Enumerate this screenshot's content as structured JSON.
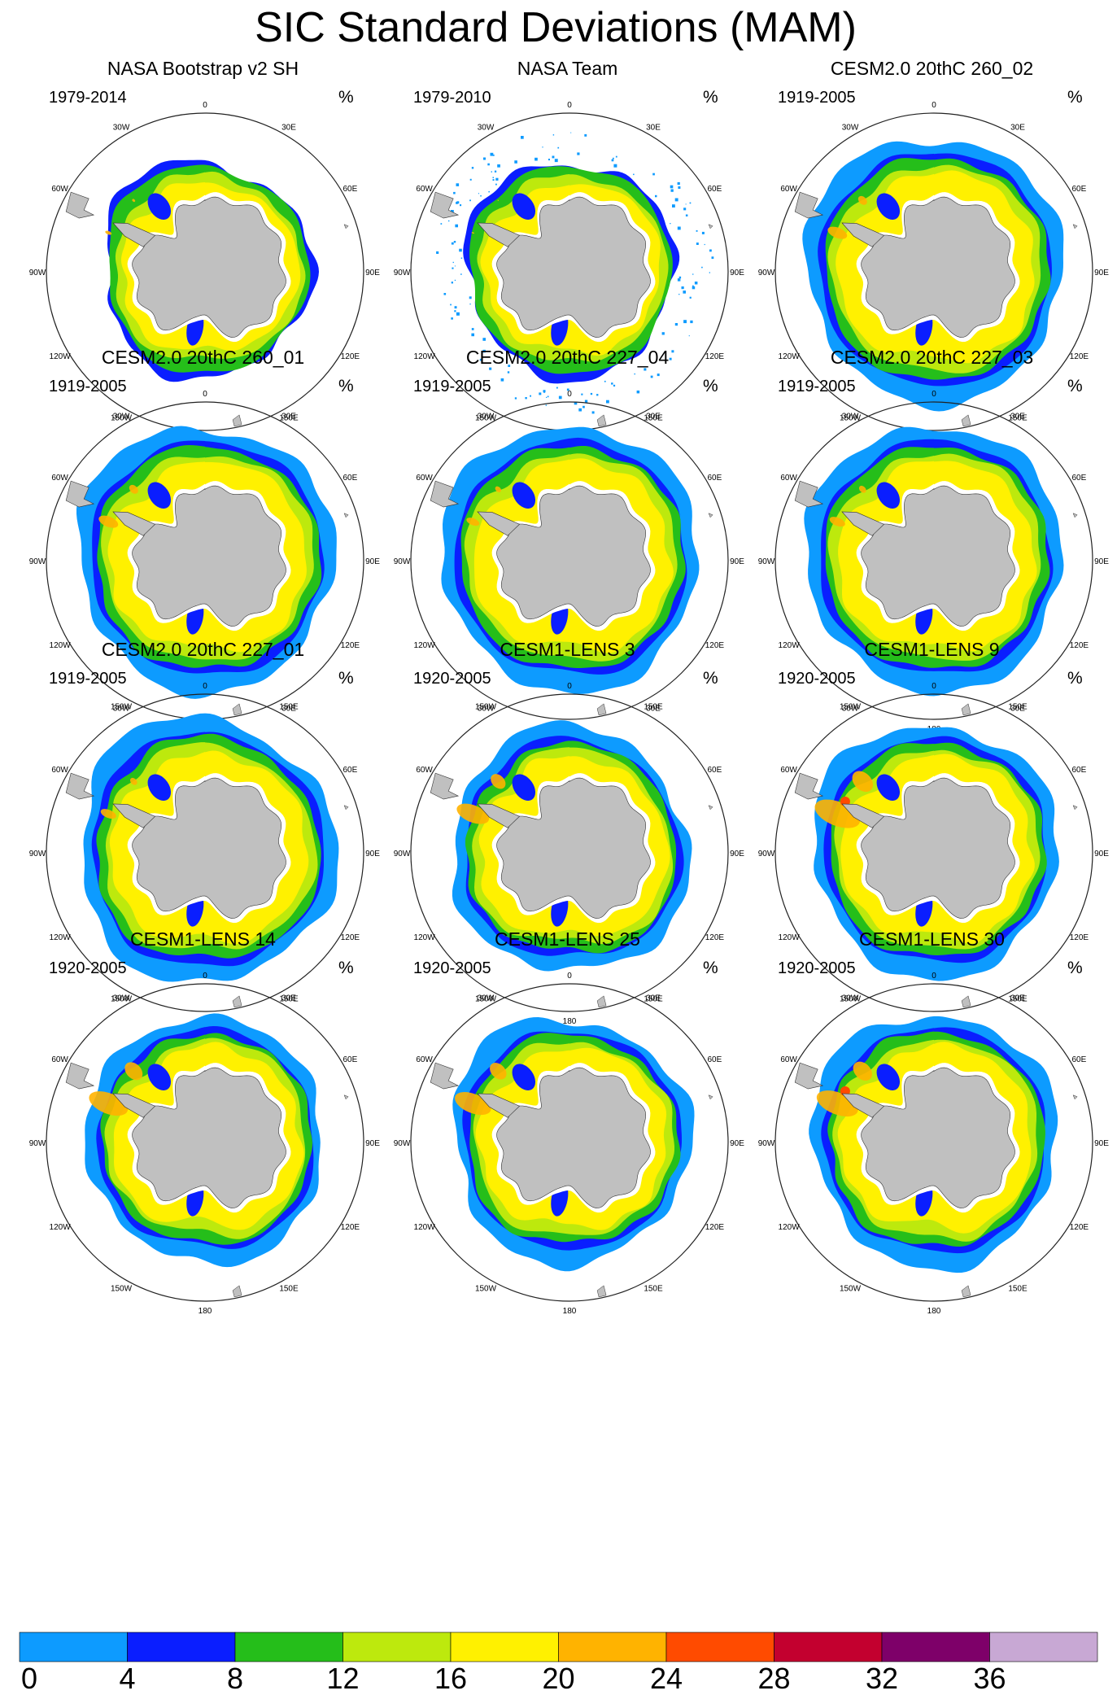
{
  "title": "SIC Standard Deviations (MAM)",
  "unit": "%",
  "land_color": "#c0c0c0",
  "longitude_labels": [
    "0",
    "30E",
    "60E",
    "90E",
    "120E",
    "150E",
    "180",
    "150W",
    "120W",
    "90W",
    "60W",
    "30W"
  ],
  "panels": [
    {
      "title": "NASA Bootstrap v2 SH",
      "period": "1979-2014",
      "intensity": 0.75,
      "extent": 0.8,
      "style": "obs"
    },
    {
      "title": "NASA Team",
      "period": "1979-2010",
      "intensity": 0.72,
      "extent": 0.8,
      "style": "obs_speckle"
    },
    {
      "title": "CESM2.0 20thC 260_02",
      "period": "1919-2005",
      "intensity": 0.85,
      "extent": 1.0,
      "style": "model"
    },
    {
      "title": "CESM2.0 20thC 260_01",
      "period": "1919-2005",
      "intensity": 0.85,
      "extent": 1.0,
      "style": "model"
    },
    {
      "title": "CESM2.0 20thC 227_04",
      "period": "1919-2005",
      "intensity": 0.8,
      "extent": 1.0,
      "style": "model"
    },
    {
      "title": "CESM2.0 20thC 227_03",
      "period": "1919-2005",
      "intensity": 0.82,
      "extent": 1.0,
      "style": "model"
    },
    {
      "title": "CESM2.0 20thC 227_01",
      "period": "1919-2005",
      "intensity": 0.82,
      "extent": 1.0,
      "style": "model"
    },
    {
      "title": "CESM1-LENS 3",
      "period": "1920-2005",
      "intensity": 0.95,
      "extent": 0.92,
      "style": "model"
    },
    {
      "title": "CESM1-LENS 9",
      "period": "1920-2005",
      "intensity": 1.05,
      "extent": 0.95,
      "style": "model"
    },
    {
      "title": "CESM1-LENS 14",
      "period": "1920-2005",
      "intensity": 1.0,
      "extent": 0.92,
      "style": "model"
    },
    {
      "title": "CESM1-LENS 25",
      "period": "1920-2005",
      "intensity": 0.98,
      "extent": 0.92,
      "style": "model"
    },
    {
      "title": "CESM1-LENS 30",
      "period": "1920-2005",
      "intensity": 1.02,
      "extent": 0.95,
      "style": "model"
    }
  ],
  "colorbar": {
    "ticks": [
      "0",
      "4",
      "8",
      "12",
      "16",
      "20",
      "24",
      "28",
      "32",
      "36"
    ],
    "colors": [
      "#0d9bff",
      "#0a1eff",
      "#25be1a",
      "#bde90d",
      "#fff100",
      "#ffb300",
      "#ff4b00",
      "#c3002f",
      "#7e0069",
      "#c8a8d4"
    ]
  }
}
